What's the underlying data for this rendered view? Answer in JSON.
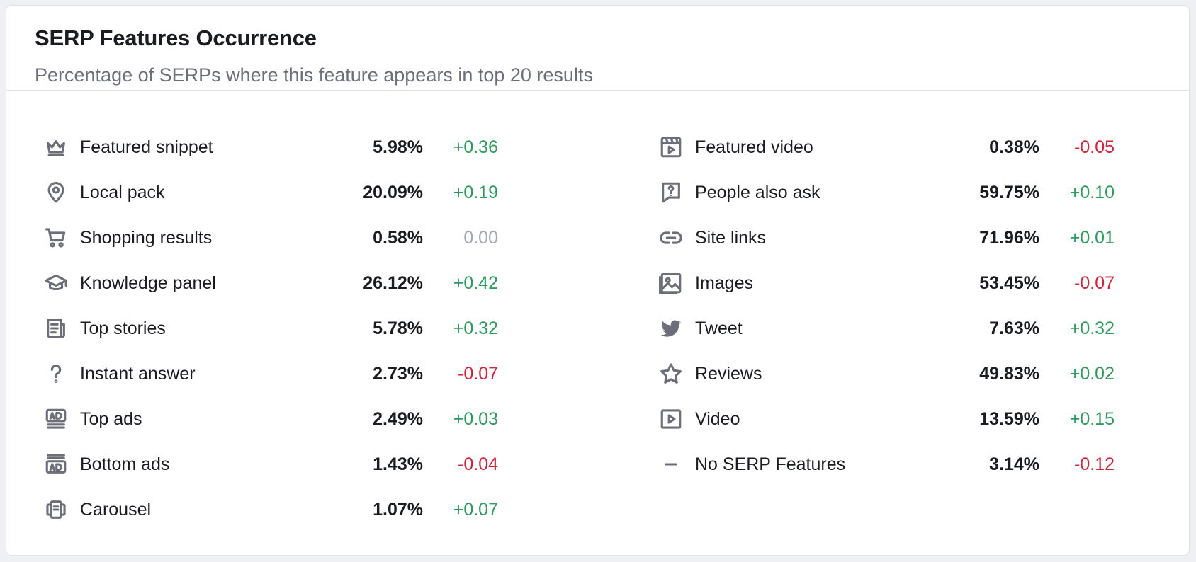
{
  "card": {
    "title": "SERP Features Occurrence",
    "subtitle": "Percentage of SERPs where this feature appears in top 20 results"
  },
  "colors": {
    "positive": "#2f9a5e",
    "negative": "#d1223b",
    "neutral": "#a4a6b0",
    "icon": "#6c6e79"
  },
  "features_left": [
    {
      "icon": "crown-icon",
      "label": "Featured snippet",
      "value": "5.98%",
      "delta": "+0.36",
      "trend": "pos"
    },
    {
      "icon": "map-pin-icon",
      "label": "Local pack",
      "value": "20.09%",
      "delta": "+0.19",
      "trend": "pos"
    },
    {
      "icon": "cart-icon",
      "label": "Shopping results",
      "value": "0.58%",
      "delta": "0.00",
      "trend": "neu"
    },
    {
      "icon": "graduation-cap-icon",
      "label": "Knowledge panel",
      "value": "26.12%",
      "delta": "+0.42",
      "trend": "pos"
    },
    {
      "icon": "news-icon",
      "label": "Top stories",
      "value": "5.78%",
      "delta": "+0.32",
      "trend": "pos"
    },
    {
      "icon": "question-icon",
      "label": "Instant answer",
      "value": "2.73%",
      "delta": "-0.07",
      "trend": "neg"
    },
    {
      "icon": "top-ad-icon",
      "label": "Top ads",
      "value": "2.49%",
      "delta": "+0.03",
      "trend": "pos"
    },
    {
      "icon": "bottom-ad-icon",
      "label": "Bottom ads",
      "value": "1.43%",
      "delta": "-0.04",
      "trend": "neg"
    },
    {
      "icon": "carousel-icon",
      "label": "Carousel",
      "value": "1.07%",
      "delta": "+0.07",
      "trend": "pos"
    }
  ],
  "features_right": [
    {
      "icon": "featured-video-icon",
      "label": "Featured video",
      "value": "0.38%",
      "delta": "-0.05",
      "trend": "neg"
    },
    {
      "icon": "question-bubble-icon",
      "label": "People also ask",
      "value": "59.75%",
      "delta": "+0.10",
      "trend": "pos"
    },
    {
      "icon": "link-icon",
      "label": "Site links",
      "value": "71.96%",
      "delta": "+0.01",
      "trend": "pos"
    },
    {
      "icon": "images-icon",
      "label": "Images",
      "value": "53.45%",
      "delta": "-0.07",
      "trend": "neg"
    },
    {
      "icon": "twitter-bird-icon",
      "label": "Tweet",
      "value": "7.63%",
      "delta": "+0.32",
      "trend": "pos"
    },
    {
      "icon": "star-icon",
      "label": "Reviews",
      "value": "49.83%",
      "delta": "+0.02",
      "trend": "pos"
    },
    {
      "icon": "video-play-icon",
      "label": "Video",
      "value": "13.59%",
      "delta": "+0.15",
      "trend": "pos"
    },
    {
      "icon": "minus-icon",
      "label": "No SERP Features",
      "value": "3.14%",
      "delta": "-0.12",
      "trend": "neg"
    }
  ]
}
